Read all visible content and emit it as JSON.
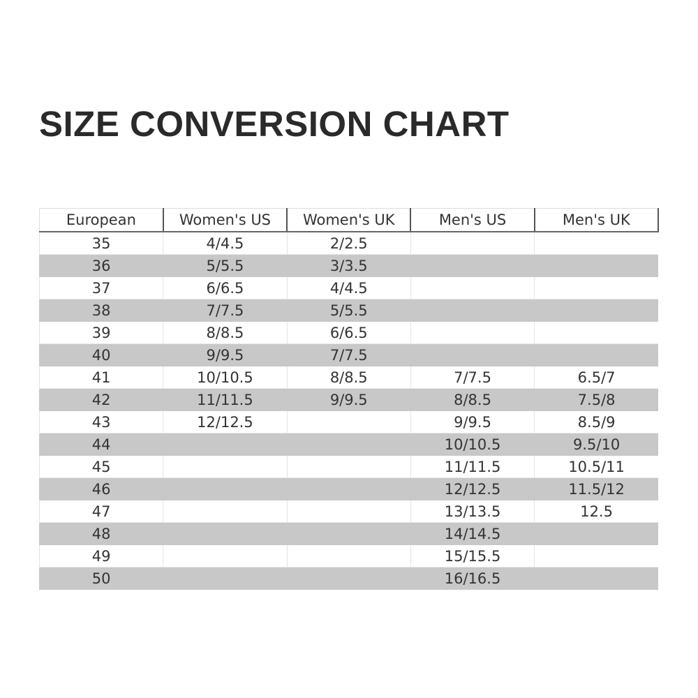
{
  "title": "SIZE CONVERSION CHART",
  "colors": {
    "shaded_row": "#c8c8c8",
    "text": "#333333"
  },
  "table": {
    "headers": [
      "European",
      "Women's US",
      "Women's UK",
      "Men's US",
      "Men's UK"
    ],
    "rows": [
      [
        "35",
        "4/4.5",
        "2/2.5",
        "",
        ""
      ],
      [
        "36",
        "5/5.5",
        "3/3.5",
        "",
        ""
      ],
      [
        "37",
        "6/6.5",
        "4/4.5",
        "",
        ""
      ],
      [
        "38",
        "7/7.5",
        "5/5.5",
        "",
        ""
      ],
      [
        "39",
        "8/8.5",
        "6/6.5",
        "",
        ""
      ],
      [
        "40",
        "9/9.5",
        "7/7.5",
        "",
        ""
      ],
      [
        "41",
        "10/10.5",
        "8/8.5",
        "7/7.5",
        "6.5/7"
      ],
      [
        "42",
        "11/11.5",
        "9/9.5",
        "8/8.5",
        "7.5/8"
      ],
      [
        "43",
        "12/12.5",
        "",
        "9/9.5",
        "8.5/9"
      ],
      [
        "44",
        "",
        "",
        "10/10.5",
        "9.5/10"
      ],
      [
        "45",
        "",
        "",
        "11/11.5",
        "10.5/11"
      ],
      [
        "46",
        "",
        "",
        "12/12.5",
        "11.5/12"
      ],
      [
        "47",
        "",
        "",
        "13/13.5",
        "12.5"
      ],
      [
        "48",
        "",
        "",
        "14/14.5",
        ""
      ],
      [
        "49",
        "",
        "",
        "15/15.5",
        ""
      ],
      [
        "50",
        "",
        "",
        "16/16.5",
        ""
      ]
    ]
  }
}
